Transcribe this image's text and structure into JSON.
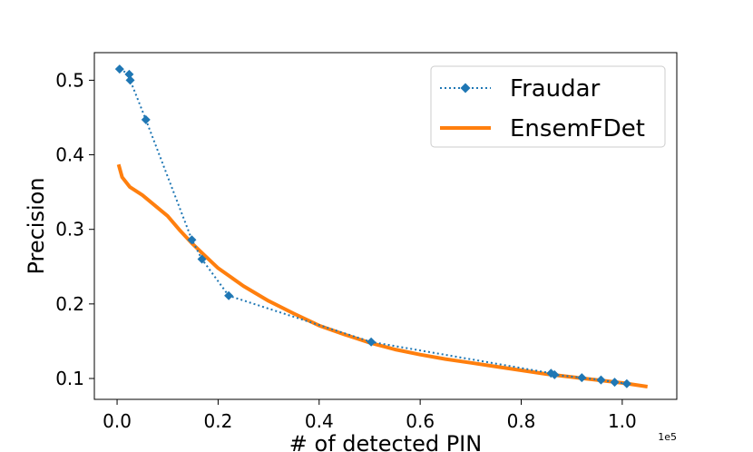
{
  "chart_data": {
    "type": "line",
    "title": "",
    "xlabel": "# of detected PIN",
    "ylabel": "Precision",
    "x_offset_text": "1e5",
    "xlim": [
      -0.045,
      1.108
    ],
    "ylim": [
      0.072,
      0.537
    ],
    "x_ticks": [
      0.0,
      0.2,
      0.4,
      0.6,
      0.8,
      1.0
    ],
    "x_tick_labels": [
      "0.0",
      "0.2",
      "0.4",
      "0.6",
      "0.8",
      "1.0"
    ],
    "y_ticks": [
      0.1,
      0.2,
      0.3,
      0.4,
      0.5
    ],
    "y_tick_labels": [
      "0.1",
      "0.2",
      "0.3",
      "0.4",
      "0.5"
    ],
    "grid": false,
    "legend_position": "top-right",
    "series": [
      {
        "name": "Fraudar",
        "color": "#1f77b4",
        "style": "dotted",
        "marker": "diamond",
        "x": [
          0.005,
          0.024,
          0.026,
          0.057,
          0.148,
          0.168,
          0.221,
          0.503,
          0.859,
          0.866,
          0.92,
          0.958,
          0.985,
          1.009
        ],
        "y": [
          0.515,
          0.508,
          0.5,
          0.447,
          0.286,
          0.26,
          0.211,
          0.149,
          0.107,
          0.105,
          0.101,
          0.098,
          0.095,
          0.093
        ]
      },
      {
        "name": "EnsemFDet",
        "color": "#ff7f0e",
        "style": "solid",
        "marker": "none",
        "x": [
          0.003,
          0.01,
          0.025,
          0.05,
          0.075,
          0.1,
          0.125,
          0.15,
          0.175,
          0.2,
          0.25,
          0.3,
          0.35,
          0.4,
          0.45,
          0.5,
          0.55,
          0.6,
          0.65,
          0.7,
          0.75,
          0.8,
          0.85,
          0.9,
          0.95,
          1.0,
          1.05
        ],
        "y": [
          0.387,
          0.37,
          0.357,
          0.346,
          0.332,
          0.318,
          0.298,
          0.28,
          0.264,
          0.248,
          0.224,
          0.204,
          0.187,
          0.171,
          0.159,
          0.148,
          0.139,
          0.132,
          0.126,
          0.121,
          0.116,
          0.111,
          0.106,
          0.102,
          0.098,
          0.094,
          0.089
        ]
      }
    ]
  }
}
